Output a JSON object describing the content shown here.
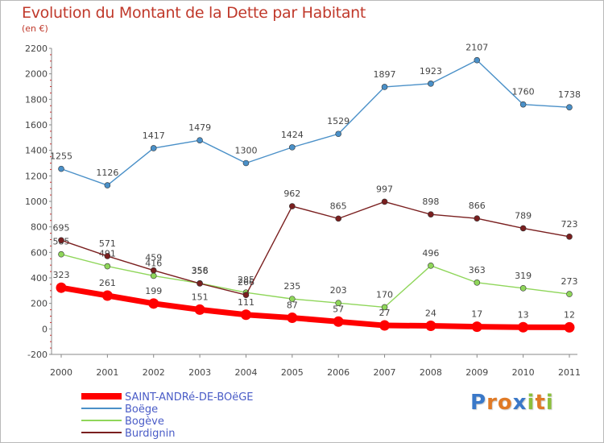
{
  "title": "Evolution du Montant de la Dette par Habitant",
  "subtitle": "(en €)",
  "brand": {
    "text": "Proxiti",
    "letters": [
      {
        "ch": "P",
        "color": "#3a78c8"
      },
      {
        "ch": "r",
        "color": "#e07a26"
      },
      {
        "ch": "o",
        "color": "#e07a26"
      },
      {
        "ch": "x",
        "color": "#3a78c8"
      },
      {
        "ch": "i",
        "color": "#8cbf3c"
      },
      {
        "ch": "t",
        "color": "#e07a26"
      },
      {
        "ch": "i",
        "color": "#8cbf3c"
      }
    ]
  },
  "chart_data": {
    "type": "line",
    "title": "Evolution du Montant de la Dette par Habitant",
    "subtitle": "(en €)",
    "xlabel": "",
    "ylabel": "",
    "categories": [
      "2000",
      "2001",
      "2002",
      "2003",
      "2004",
      "2005",
      "2006",
      "2007",
      "2008",
      "2009",
      "2010",
      "2011"
    ],
    "ylim": [
      -200,
      2200
    ],
    "yticks": [
      -200,
      0,
      200,
      400,
      600,
      800,
      1000,
      1200,
      1400,
      1600,
      1800,
      2000,
      2200
    ],
    "grid": false,
    "legend_position": "bottom-left",
    "series": [
      {
        "name": "SAINT-ANDRé-DE-BOëGE",
        "color": "#ff0000",
        "emphasis": true,
        "values": [
          323,
          261,
          199,
          151,
          111,
          87,
          57,
          27,
          24,
          17,
          13,
          12
        ]
      },
      {
        "name": "Boëge",
        "color": "#4a90c8",
        "emphasis": false,
        "values": [
          1255,
          1126,
          1417,
          1479,
          1300,
          1424,
          1529,
          1897,
          1923,
          2107,
          1760,
          1738
        ]
      },
      {
        "name": "Bogève",
        "color": "#8fd65a",
        "emphasis": false,
        "values": [
          585,
          491,
          416,
          358,
          285,
          235,
          203,
          170,
          496,
          363,
          319,
          273
        ]
      },
      {
        "name": "Burdignin",
        "color": "#7a1f1f",
        "emphasis": false,
        "values": [
          695,
          571,
          459,
          356,
          266,
          962,
          865,
          997,
          898,
          866,
          789,
          723
        ]
      }
    ]
  }
}
